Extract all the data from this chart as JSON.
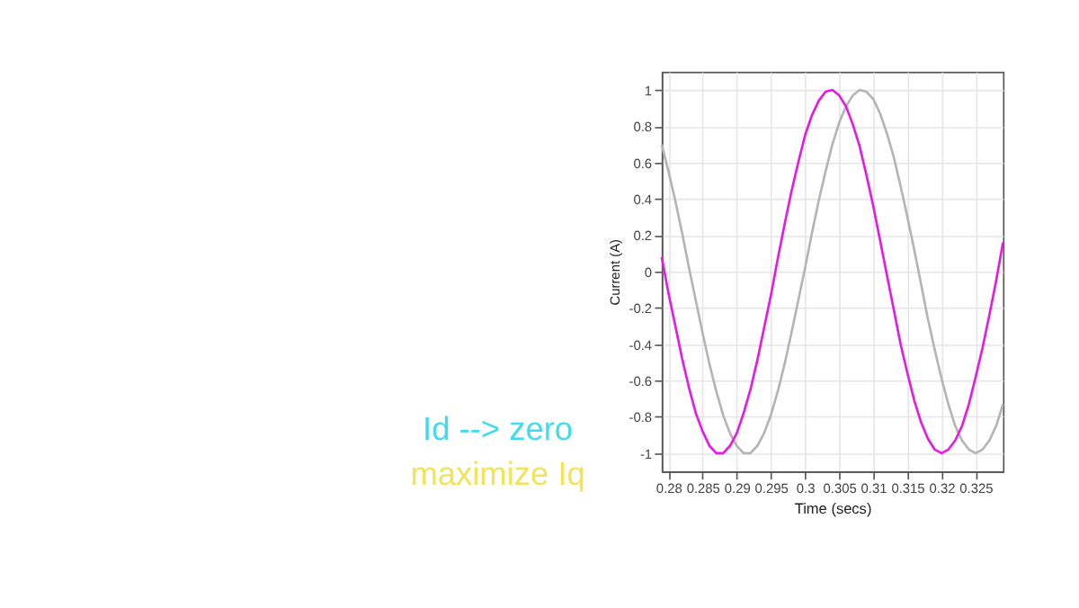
{
  "chart_data": {
    "type": "line",
    "xlabel": "Time (secs)",
    "ylabel": "Current (A)",
    "x": [
      0.279,
      0.28,
      0.281,
      0.282,
      0.283,
      0.284,
      0.285,
      0.286,
      0.287,
      0.288,
      0.289,
      0.29,
      0.291,
      0.292,
      0.293,
      0.294,
      0.295,
      0.296,
      0.297,
      0.298,
      0.299,
      0.3,
      0.301,
      0.302,
      0.303,
      0.304,
      0.305,
      0.306,
      0.307,
      0.308,
      0.309,
      0.31,
      0.311,
      0.312,
      0.313,
      0.314,
      0.315,
      0.316,
      0.317,
      0.318,
      0.319,
      0.32,
      0.321,
      0.322,
      0.323,
      0.324,
      0.325,
      0.326,
      0.327,
      0.328,
      0.329
    ],
    "series": [
      {
        "color": "#b4b4b4",
        "values": [
          0.7,
          0.55,
          0.39,
          0.21,
          0.02,
          -0.16,
          -0.34,
          -0.51,
          -0.66,
          -0.79,
          -0.89,
          -0.96,
          -1.0,
          -1.0,
          -0.96,
          -0.89,
          -0.79,
          -0.66,
          -0.51,
          -0.34,
          -0.16,
          0.02,
          0.21,
          0.39,
          0.55,
          0.7,
          0.82,
          0.91,
          0.97,
          1.0,
          0.99,
          0.95,
          0.87,
          0.76,
          0.63,
          0.47,
          0.3,
          0.12,
          -0.07,
          -0.26,
          -0.43,
          -0.59,
          -0.73,
          -0.85,
          -0.93,
          -0.98,
          -1.0,
          -0.98,
          -0.93,
          -0.85,
          -0.73
        ]
      },
      {
        "color": "#e619e6",
        "values": [
          0.08,
          -0.12,
          -0.3,
          -0.48,
          -0.64,
          -0.78,
          -0.88,
          -0.96,
          -1.0,
          -1.0,
          -0.96,
          -0.89,
          -0.78,
          -0.65,
          -0.49,
          -0.31,
          -0.13,
          0.07,
          0.26,
          0.44,
          0.6,
          0.75,
          0.86,
          0.94,
          0.99,
          1.0,
          0.97,
          0.91,
          0.81,
          0.69,
          0.53,
          0.36,
          0.17,
          -0.02,
          -0.21,
          -0.4,
          -0.56,
          -0.71,
          -0.83,
          -0.92,
          -0.98,
          -1.0,
          -0.98,
          -0.93,
          -0.85,
          -0.73,
          -0.58,
          -0.42,
          -0.24,
          -0.05,
          0.16
        ]
      }
    ],
    "xlim": [
      0.279,
      0.329
    ],
    "xticks": [
      0.28,
      0.285,
      0.29,
      0.295,
      0.3,
      0.305,
      0.31,
      0.315,
      0.32,
      0.325
    ],
    "ylim": [
      -1.1,
      1.1
    ],
    "yticks": [
      -1,
      -0.8,
      -0.6,
      -0.4,
      -0.2,
      0,
      0.2,
      0.4,
      0.6,
      0.8,
      1
    ],
    "grid": true,
    "legend": false,
    "annotations": [
      "Id --> zero",
      "maximize Iq"
    ]
  }
}
